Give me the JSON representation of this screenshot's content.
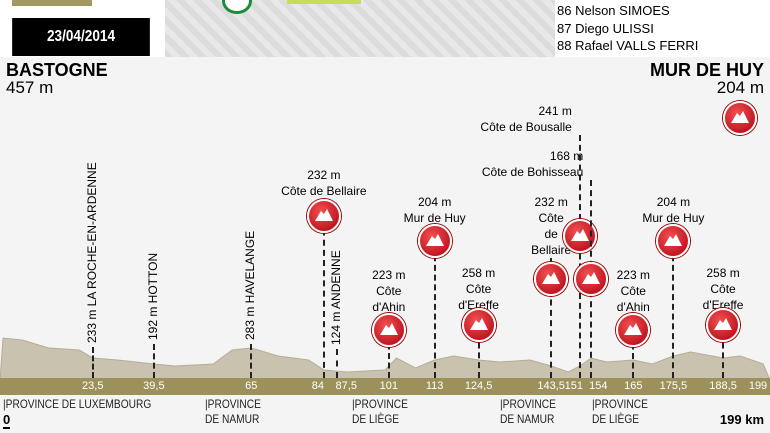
{
  "header": {
    "date": "23/04/2014",
    "riders": [
      "86 Nelson SIMOES",
      "87 Diego ULISSI",
      "88 Rafael VALLS FERRI"
    ]
  },
  "start": {
    "name": "BASTOGNE",
    "altitude": "457 m",
    "km": "0"
  },
  "finish": {
    "name": "MUR DE HUY",
    "altitude": "204 m",
    "km": "199 km",
    "icon": "mountain-icon"
  },
  "km_markers": [
    "23,5",
    "39,5",
    "65",
    "84",
    "87,5",
    "101",
    "113",
    "124,5",
    "143,5",
    "151",
    "154",
    "165",
    "175,5",
    "188,5",
    "199"
  ],
  "towns": [
    {
      "km": 23.5,
      "label": "233 m LA ROCHE-EN-ARDENNE"
    },
    {
      "km": 39.5,
      "label": "192 m HOTTON"
    },
    {
      "km": 65,
      "label": "283 m HAVELANGE"
    },
    {
      "km": 87.5,
      "label": "124 m ANDENNE"
    }
  ],
  "climbs": [
    {
      "km": 84,
      "lines": [
        "232 m",
        "Côte de Bellaire"
      ]
    },
    {
      "km": 101,
      "lines": [
        "223 m",
        "Côte",
        "d'Ahin"
      ]
    },
    {
      "km": 113,
      "lines": [
        "204 m",
        "Mur de Huy"
      ]
    },
    {
      "km": 124.5,
      "lines": [
        "258 m",
        "Côte",
        "d'Ereffe"
      ]
    },
    {
      "km": 143.5,
      "lines": [
        "232 m",
        "Côte",
        "de",
        "Bellaire"
      ]
    },
    {
      "km": 151,
      "lines": [
        "241 m",
        "Côte de Bousalle"
      ]
    },
    {
      "km": 154,
      "lines": [
        "168 m",
        "Côte de Bohisseau"
      ]
    },
    {
      "km": 165,
      "lines": [
        "223 m",
        "Côte",
        "d'Ahin"
      ]
    },
    {
      "km": 175.5,
      "lines": [
        "204 m",
        "Mur de Huy"
      ]
    },
    {
      "km": 188.5,
      "lines": [
        "258 m",
        "Côte",
        "d'Ereffe"
      ]
    }
  ],
  "provinces": [
    {
      "lines": [
        "|PROVINCE DE LUXEMBOURG"
      ]
    },
    {
      "lines": [
        "|PROVINCE",
        "DE NAMUR"
      ]
    },
    {
      "lines": [
        "|PROVINCE",
        "DE LIÈGE"
      ]
    },
    {
      "lines": [
        "|PROVINCE",
        "DE NAMUR"
      ]
    },
    {
      "lines": [
        "|PROVINCE",
        "DE LIÈGE"
      ]
    }
  ],
  "colors": {
    "climb": "#c00018",
    "band": "#9d915b",
    "terrain": "#c9c2ae"
  }
}
